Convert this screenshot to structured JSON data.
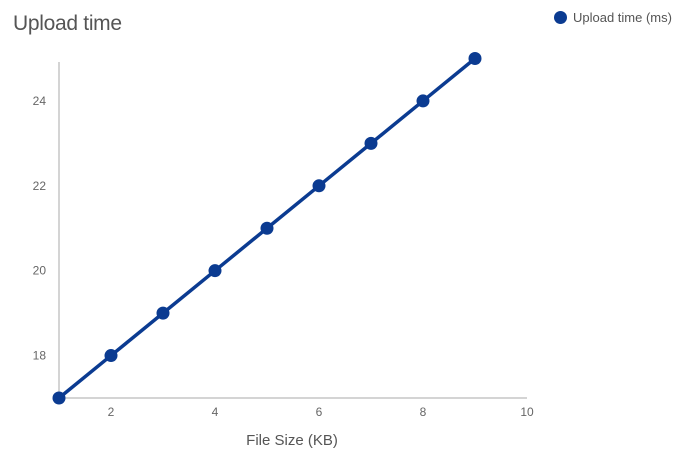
{
  "colors": {
    "series": "#0b3b91",
    "axis": "#aaaaaa",
    "text": "#555555"
  },
  "chart_data": {
    "type": "line",
    "title": "Upload time",
    "xlabel": "File Size (KB)",
    "ylabel": "",
    "xlim": [
      1,
      10
    ],
    "ylim": [
      17,
      25.2
    ],
    "xticks": [
      2,
      4,
      6,
      8,
      10
    ],
    "yticks": [
      18,
      20,
      22,
      24
    ],
    "grid": false,
    "legend_position": "top-right",
    "series": [
      {
        "name": "Upload time (ms)",
        "x": [
          1,
          2,
          3,
          4,
          5,
          6,
          7,
          8,
          9
        ],
        "y": [
          17,
          18,
          19,
          20,
          21,
          22,
          23,
          24,
          25
        ]
      }
    ]
  }
}
